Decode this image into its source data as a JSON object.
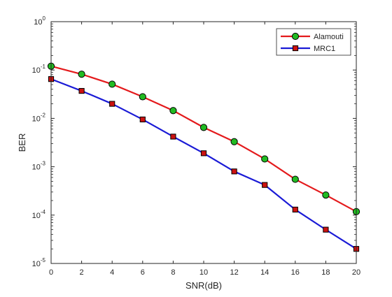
{
  "chart_data": {
    "type": "line",
    "xlabel": "SNR(dB)",
    "ylabel": "BER",
    "x": [
      0,
      2,
      4,
      6,
      8,
      10,
      12,
      14,
      16,
      18,
      20
    ],
    "xlim": [
      0,
      20
    ],
    "ylim": [
      1e-05,
      1
    ],
    "yscale": "log",
    "xticks": [
      "0",
      "2",
      "4",
      "6",
      "8",
      "10",
      "12",
      "14",
      "16",
      "18",
      "20"
    ],
    "yticks": [
      {
        "base": "10",
        "exp": "0"
      },
      {
        "base": "10",
        "exp": "-1"
      },
      {
        "base": "10",
        "exp": "-2"
      },
      {
        "base": "10",
        "exp": "-3"
      },
      {
        "base": "10",
        "exp": "-4"
      },
      {
        "base": "10",
        "exp": "-5"
      }
    ],
    "grid": false,
    "legend_position": "top-right",
    "series": [
      {
        "name": "Alamouti",
        "marker": "circle",
        "color": "#e41a1c",
        "marker_fill": "#22bb22",
        "values": [
          0.12,
          0.082,
          0.051,
          0.028,
          0.0145,
          0.0065,
          0.0033,
          0.00145,
          0.00055,
          0.00026,
          0.000118
        ]
      },
      {
        "name": "MRC1",
        "marker": "square",
        "color": "#1a1ad6",
        "marker_fill": "#cc1111",
        "values": [
          0.065,
          0.037,
          0.02,
          0.0095,
          0.0042,
          0.0019,
          0.0008,
          0.00042,
          0.00013,
          5e-05,
          2e-05
        ]
      }
    ]
  }
}
